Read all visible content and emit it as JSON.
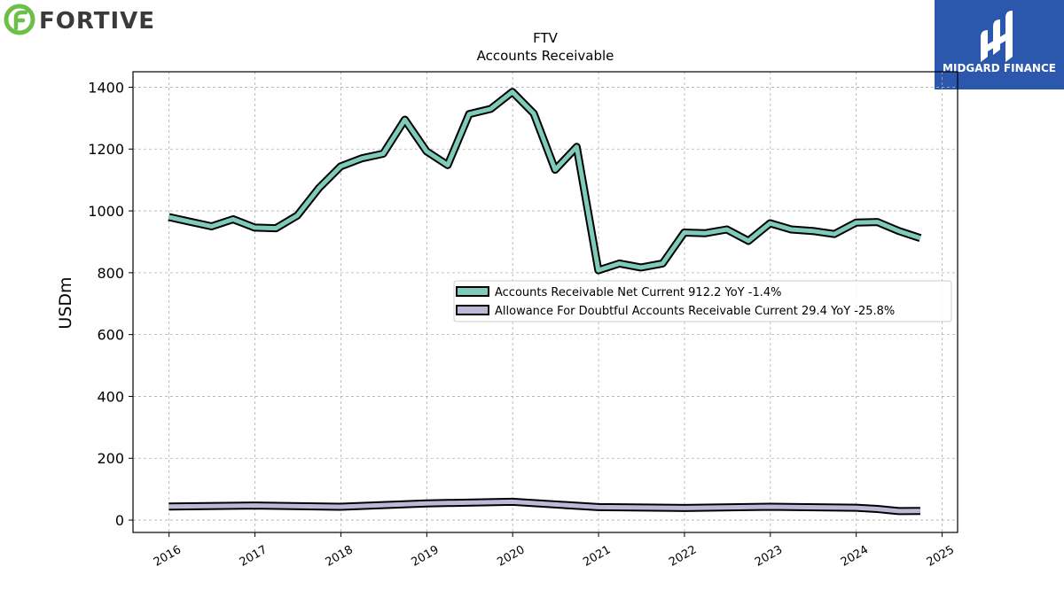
{
  "brand_left": {
    "name": "FORTIVE",
    "color": "#3a3a3a",
    "accent": "#6cc04a"
  },
  "brand_right": {
    "name": "MIDGARD FINANCE",
    "color": "#2b58ad"
  },
  "chart_data": {
    "type": "line",
    "title": "FTV",
    "subtitle": "Accounts Receivable",
    "ylabel": "USDm",
    "xlabel": "",
    "ylim": [
      -40,
      1450
    ],
    "yticks": [
      0,
      200,
      400,
      600,
      800,
      1000,
      1200,
      1400
    ],
    "xlim": [
      2015.58,
      2025.18
    ],
    "xticks": [
      "2016",
      "2017",
      "2018",
      "2019",
      "2020",
      "2021",
      "2022",
      "2023",
      "2024",
      "2025"
    ],
    "grid": true,
    "legend_position": "center-right",
    "series": [
      {
        "name": "Accounts Receivable Net Current",
        "legend": "Accounts Receivable Net Current  912.2 YoY -1.4%",
        "color": "#7fcbb9",
        "points": [
          [
            "2015-12-31",
            980
          ],
          [
            "2016-03-31",
            965
          ],
          [
            "2016-06-30",
            950
          ],
          [
            "2016-09-30",
            973
          ],
          [
            "2016-12-31",
            946
          ],
          [
            "2017-03-31",
            944
          ],
          [
            "2017-06-30",
            985
          ],
          [
            "2017-09-30",
            1074
          ],
          [
            "2017-12-31",
            1144
          ],
          [
            "2018-03-31",
            1170
          ],
          [
            "2018-06-30",
            1185
          ],
          [
            "2018-09-30",
            1295
          ],
          [
            "2018-12-31",
            1193
          ],
          [
            "2019-03-31",
            1148
          ],
          [
            "2019-06-30",
            1313
          ],
          [
            "2019-09-30",
            1330
          ],
          [
            "2019-12-31",
            1385
          ],
          [
            "2020-03-31",
            1315
          ],
          [
            "2020-06-30",
            1133
          ],
          [
            "2020-09-30",
            1207
          ],
          [
            "2020-12-31",
            808
          ],
          [
            "2021-03-31",
            830
          ],
          [
            "2021-06-30",
            817
          ],
          [
            "2021-09-30",
            830
          ],
          [
            "2021-12-31",
            930
          ],
          [
            "2022-03-31",
            928
          ],
          [
            "2022-06-30",
            940
          ],
          [
            "2022-09-30",
            903
          ],
          [
            "2022-12-31",
            960
          ],
          [
            "2023-03-31",
            940
          ],
          [
            "2023-06-30",
            935
          ],
          [
            "2023-09-30",
            925
          ],
          [
            "2023-12-31",
            962
          ],
          [
            "2024-03-31",
            964
          ],
          [
            "2024-06-30",
            935
          ],
          [
            "2024-09-30",
            912.2
          ]
        ]
      },
      {
        "name": "Allowance For Doubtful Accounts Receivable Current",
        "legend": "Allowance For Doubtful Accounts Receivable Current  29.4 YoY -25.8%",
        "color": "#bcb8d8",
        "points": [
          [
            "2015-12-31",
            44
          ],
          [
            "2016-12-31",
            47
          ],
          [
            "2017-12-31",
            43
          ],
          [
            "2018-12-31",
            54
          ],
          [
            "2019-12-31",
            59
          ],
          [
            "2020-12-31",
            42
          ],
          [
            "2021-12-31",
            39
          ],
          [
            "2022-12-31",
            43
          ],
          [
            "2023-12-31",
            40
          ],
          [
            "2024-03-31",
            36
          ],
          [
            "2024-06-30",
            29
          ],
          [
            "2024-09-30",
            29.4
          ]
        ]
      }
    ]
  }
}
